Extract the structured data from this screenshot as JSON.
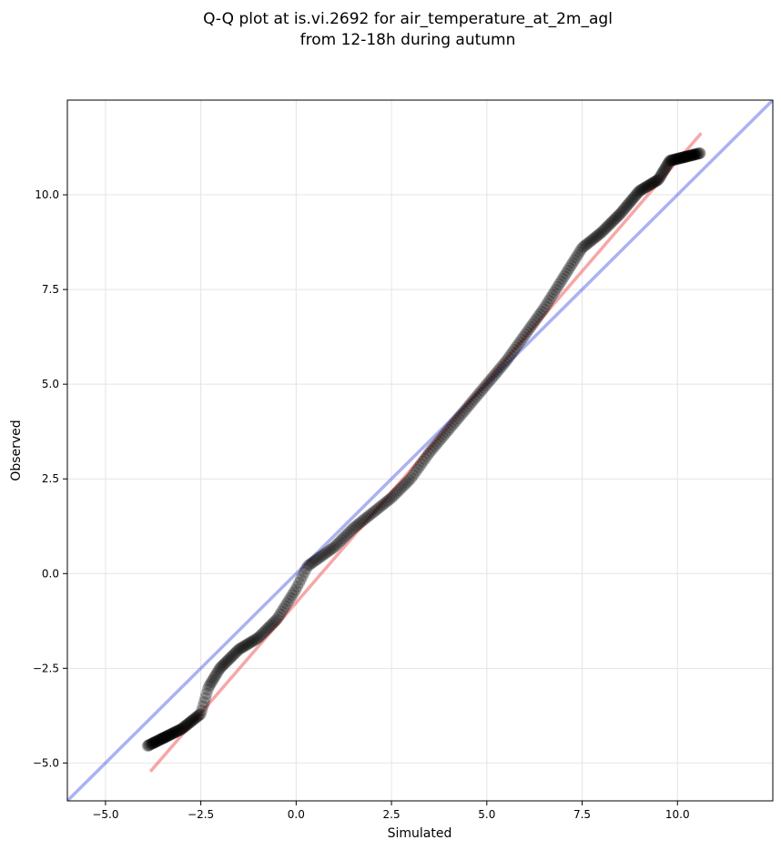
{
  "chart_data": {
    "type": "scatter",
    "title_lines": [
      "Q-Q plot at is.vi.2692 for air_temperature_at_2m_agl",
      "from 12-18h during autumn"
    ],
    "xlabel": "Simulated",
    "ylabel": "Observed",
    "xlim": [
      -6.0,
      12.5
    ],
    "ylim": [
      -6.0,
      12.5
    ],
    "xticks": [
      -5.0,
      -2.5,
      0.0,
      2.5,
      5.0,
      7.5,
      10.0
    ],
    "xtick_labels": [
      "−5.0",
      "−2.5",
      "0.0",
      "2.5",
      "5.0",
      "7.5",
      "10.0"
    ],
    "yticks": [
      -5.0,
      -2.5,
      0.0,
      2.5,
      5.0,
      7.5,
      10.0
    ],
    "ytick_labels": [
      "−5.0",
      "−2.5",
      "0.0",
      "2.5",
      "5.0",
      "7.5",
      "10.0"
    ],
    "grid": true,
    "colors": {
      "points": "#000000",
      "identity_line": "#3a44e0",
      "fit_line": "#f05050",
      "grid": "#e4e4e4"
    },
    "identity_line": [
      [
        -6.0,
        -6.0
      ],
      [
        12.5,
        12.5
      ]
    ],
    "fit_line": [
      [
        -3.8,
        -5.2
      ],
      [
        10.6,
        11.6
      ]
    ],
    "quantile_curve": [
      [
        -3.9,
        -4.55
      ],
      [
        -3.0,
        -4.1
      ],
      [
        -2.5,
        -3.7
      ],
      [
        -2.3,
        -3.0
      ],
      [
        -2.0,
        -2.5
      ],
      [
        -1.5,
        -2.0
      ],
      [
        -1.0,
        -1.7
      ],
      [
        -0.5,
        -1.2
      ],
      [
        0.0,
        -0.4
      ],
      [
        0.3,
        0.2
      ],
      [
        1.0,
        0.7
      ],
      [
        1.5,
        1.2
      ],
      [
        2.0,
        1.6
      ],
      [
        2.5,
        2.0
      ],
      [
        3.0,
        2.5
      ],
      [
        3.5,
        3.2
      ],
      [
        4.0,
        3.8
      ],
      [
        4.5,
        4.4
      ],
      [
        5.0,
        5.0
      ],
      [
        5.5,
        5.6
      ],
      [
        6.0,
        6.3
      ],
      [
        6.5,
        7.0
      ],
      [
        7.0,
        7.8
      ],
      [
        7.5,
        8.6
      ],
      [
        8.0,
        9.0
      ],
      [
        8.5,
        9.5
      ],
      [
        9.0,
        10.1
      ],
      [
        9.5,
        10.4
      ],
      [
        9.8,
        10.9
      ],
      [
        10.2,
        11.0
      ],
      [
        10.6,
        11.1
      ]
    ],
    "n_points": 420
  }
}
